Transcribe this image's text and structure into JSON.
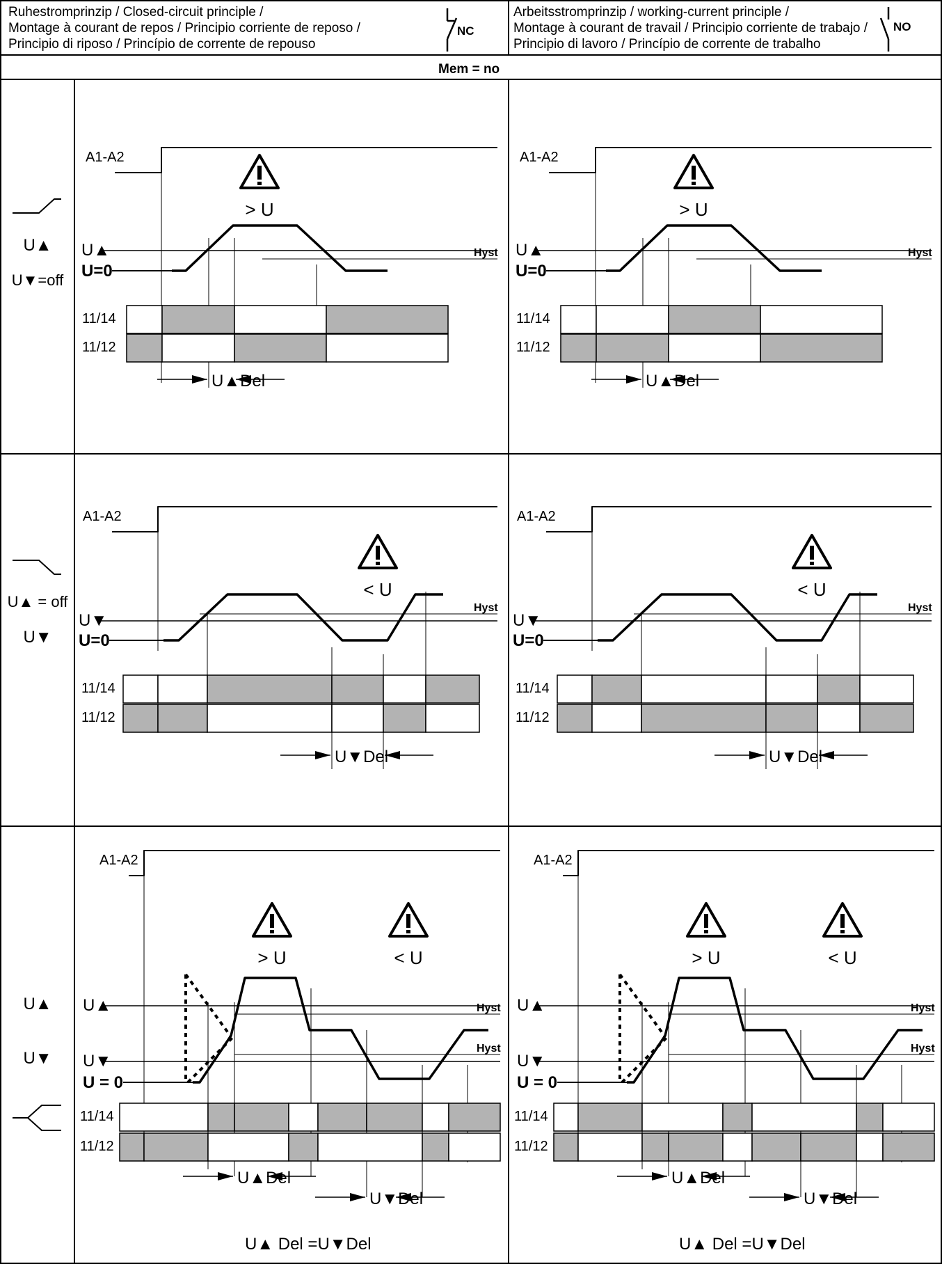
{
  "header": {
    "nc": {
      "lines": [
        "Ruhestromprinzip / Closed-circuit principle /",
        "Montage à courant de repos / Principio corriente de reposo /",
        "Principio di riposo / Princípio de corrente de repouso"
      ],
      "contact_label": "NC"
    },
    "no": {
      "lines": [
        "Arbeitsstromprinzip / working-current principle /",
        "Montage à courant de travail / Principio corriente de trabajo /",
        "Principio di lavoro / Princípio de corrente de trabalho"
      ],
      "contact_label": "NO"
    },
    "mem": "Mem = no"
  },
  "rows": [
    {
      "label_lines": [
        "U▲",
        "U▼=off"
      ]
    },
    {
      "label_lines": [
        "U▲ = off",
        "U▼"
      ]
    },
    {
      "label_lines": [
        "U▲",
        "U▼"
      ]
    }
  ],
  "diagram_text": {
    "supply": "A1-A2",
    "over": "> U",
    "under": "< U",
    "u_up": "U▲",
    "u_down": "U▼",
    "u_zero": "U=0",
    "u_zero_spaced": "U = 0",
    "hyst": "Hyst",
    "contact_14": "11/14",
    "contact_12": "11/12",
    "up_del": "U▲Del",
    "down_del": "U▼Del",
    "eq": "U▲ Del =U▼Del"
  },
  "colors": {
    "relay_on": "#b3b3b3",
    "line": "#000000"
  }
}
